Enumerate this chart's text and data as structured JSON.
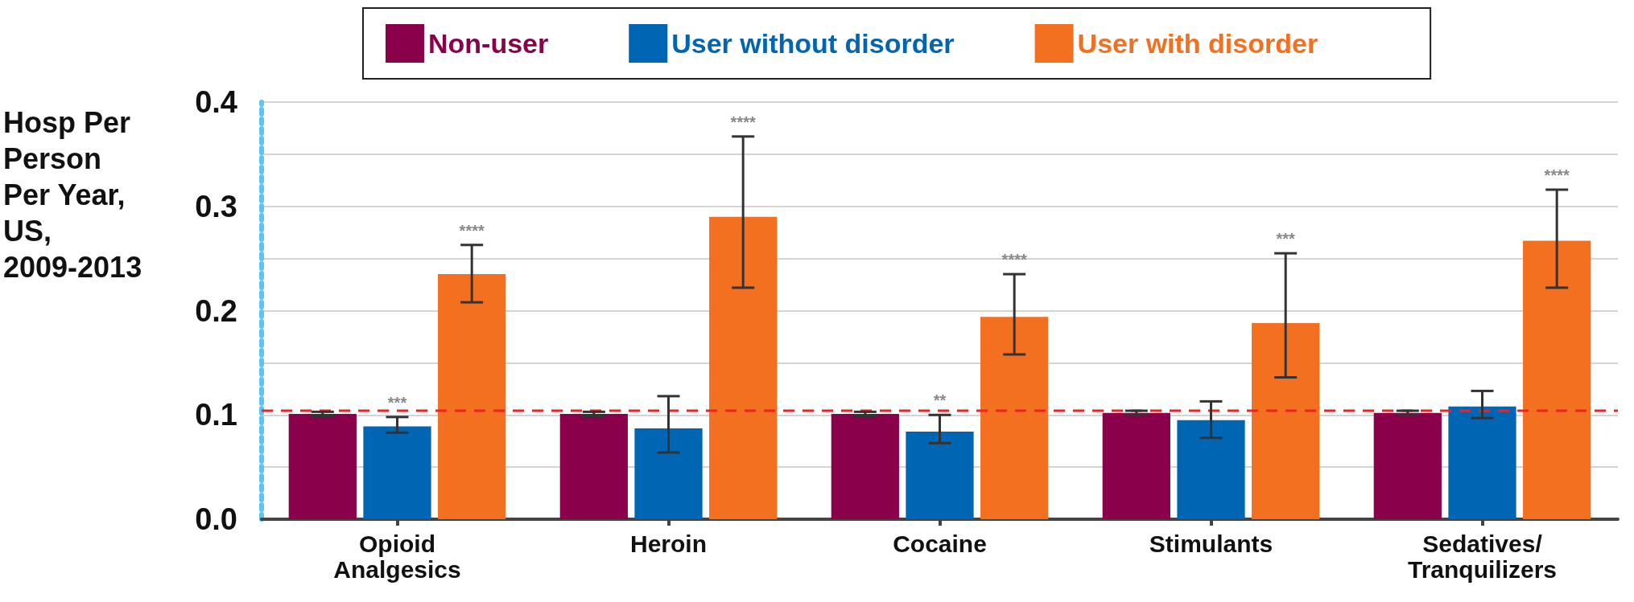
{
  "chart_data": {
    "type": "bar",
    "ylabel": "Hosp Per Person Per Year, US, 2009-2013",
    "categories": [
      "Opioid Analgesics",
      "Heroin",
      "Cocaine",
      "Stimulants",
      "Sedatives/Tranquilizers"
    ],
    "series": [
      {
        "name": "Non-user",
        "color": "#8b004b",
        "values": [
          0.101,
          0.101,
          0.101,
          0.102,
          0.102
        ],
        "errors": [
          0.002,
          0.002,
          0.002,
          0.002,
          0.002
        ]
      },
      {
        "name": "User without disorder",
        "color": "#0066b3",
        "values": [
          0.089,
          0.087,
          0.084,
          0.095,
          0.108
        ],
        "errors": [
          [
            0.083,
            0.098
          ],
          [
            0.064,
            0.118
          ],
          [
            0.073,
            0.1
          ],
          [
            0.078,
            0.113
          ],
          [
            0.097,
            0.123
          ]
        ]
      },
      {
        "name": "User with disorder",
        "color": "#f37021",
        "values": [
          0.235,
          0.29,
          0.194,
          0.188,
          0.267
        ],
        "errors": [
          [
            0.208,
            0.263
          ],
          [
            0.222,
            0.367
          ],
          [
            0.158,
            0.235
          ],
          [
            0.136,
            0.255
          ],
          [
            0.222,
            0.316
          ]
        ]
      }
    ],
    "ylim": [
      0,
      0.4
    ],
    "yticks": [
      {
        "value": 0,
        "label": "0.0"
      },
      {
        "value": 0.05,
        "label": null
      },
      {
        "value": 0.1,
        "label": "0.1"
      },
      {
        "value": 0.15,
        "label": null
      },
      {
        "value": 0.2,
        "label": "0.2"
      },
      {
        "value": 0.25,
        "label": null
      },
      {
        "value": 0.3,
        "label": "0.3"
      },
      {
        "value": 0.35,
        "label": null
      },
      {
        "value": 0.4,
        "label": "0.4"
      }
    ],
    "grid": "y",
    "legend": "top",
    "ref_lines": [
      {
        "axis": "y",
        "value": 0.104,
        "color": "#ee2222",
        "line_style": "dashed"
      }
    ],
    "annotations": [
      "***",
      "****",
      "****",
      "**",
      "****",
      "***",
      "****"
    ]
  }
}
